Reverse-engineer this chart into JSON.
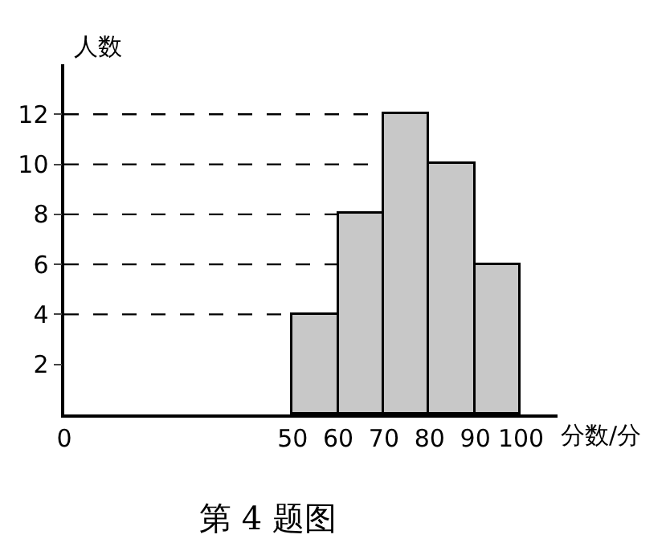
{
  "chart_data": {
    "type": "histogram",
    "title": "第 4 题图",
    "xlabel": "分数/分",
    "ylabel": "人数",
    "bins": [
      50,
      60,
      70,
      80,
      90,
      100
    ],
    "values": [
      4,
      8,
      12,
      10,
      6
    ],
    "color": "#c8c8c8",
    "xlim": [
      0,
      108
    ],
    "xticks": [
      0,
      50,
      60,
      70,
      80,
      90,
      100
    ],
    "ylim": [
      0,
      14
    ],
    "yticks": [
      2,
      4,
      6,
      8,
      10,
      12
    ],
    "grid": false,
    "ref_lines": [
      {
        "axis": "y",
        "value": 4,
        "line_style": "dashed"
      },
      {
        "axis": "y",
        "value": 6,
        "line_style": "dashed"
      },
      {
        "axis": "y",
        "value": 8,
        "line_style": "dashed"
      },
      {
        "axis": "y",
        "value": 10,
        "line_style": "dashed"
      },
      {
        "axis": "y",
        "value": 12,
        "line_style": "dashed"
      }
    ]
  }
}
